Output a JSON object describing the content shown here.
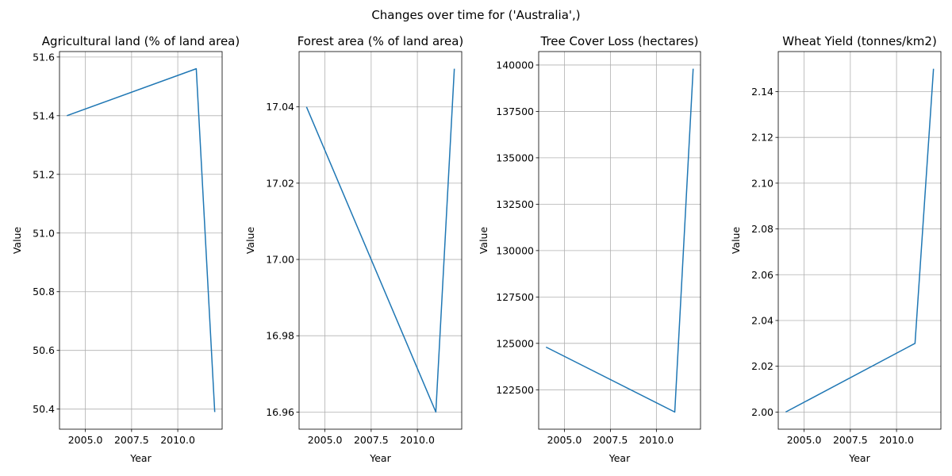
{
  "suptitle": "Changes over time for ('Australia',)",
  "chart_data": [
    {
      "type": "line",
      "title": "Agricultural land (% of land area)",
      "xlabel": "Year",
      "ylabel": "Value",
      "x": [
        2004,
        2011,
        2012
      ],
      "y": [
        51.4,
        51.56,
        50.39
      ],
      "xlim": [
        2003.6,
        2012.4
      ],
      "ylim": [
        50.3315,
        51.6185
      ],
      "xticks": [
        2005.0,
        2007.5,
        2010.0
      ],
      "xtick_labels": [
        "2005.0",
        "2007.5",
        "2010.0"
      ],
      "yticks": [
        50.4,
        50.6,
        50.8,
        51.0,
        51.2,
        51.4,
        51.6
      ],
      "ytick_labels": [
        "50.4",
        "50.6",
        "50.8",
        "51.0",
        "51.2",
        "51.4",
        "51.6"
      ],
      "grid": true,
      "color": "#1f77b4"
    },
    {
      "type": "line",
      "title": "Forest area (% of land area)",
      "xlabel": "Year",
      "ylabel": "Value",
      "x": [
        2004,
        2011,
        2012
      ],
      "y": [
        17.04,
        16.96,
        17.05
      ],
      "xlim": [
        2003.6,
        2012.4
      ],
      "ylim": [
        16.9555,
        17.0545
      ],
      "xticks": [
        2005.0,
        2007.5,
        2010.0
      ],
      "xtick_labels": [
        "2005.0",
        "2007.5",
        "2010.0"
      ],
      "yticks": [
        16.96,
        16.98,
        17.0,
        17.02,
        17.04
      ],
      "ytick_labels": [
        "16.96",
        "16.98",
        "17.00",
        "17.02",
        "17.04"
      ],
      "grid": true,
      "color": "#1f77b4"
    },
    {
      "type": "line",
      "title": "Tree Cover Loss (hectares)",
      "xlabel": "Year",
      "ylabel": "Value",
      "x": [
        2004,
        2011,
        2012
      ],
      "y": [
        124800,
        121300,
        139800
      ],
      "xlim": [
        2003.6,
        2012.4
      ],
      "ylim": [
        120375,
        140725
      ],
      "xticks": [
        2005.0,
        2007.5,
        2010.0
      ],
      "xtick_labels": [
        "2005.0",
        "2007.5",
        "2010.0"
      ],
      "yticks": [
        122500,
        125000,
        127500,
        130000,
        132500,
        135000,
        137500,
        140000
      ],
      "ytick_labels": [
        "122500",
        "125000",
        "127500",
        "130000",
        "132500",
        "135000",
        "137500",
        "140000"
      ],
      "grid": true,
      "color": "#1f77b4"
    },
    {
      "type": "line",
      "title": "Wheat Yield (tonnes/km2)",
      "xlabel": "Year",
      "ylabel": "Value",
      "x": [
        2004,
        2011,
        2012
      ],
      "y": [
        2.0,
        2.03,
        2.15
      ],
      "xlim": [
        2003.6,
        2012.4
      ],
      "ylim": [
        1.9925,
        2.1575
      ],
      "xticks": [
        2005.0,
        2007.5,
        2010.0
      ],
      "xtick_labels": [
        "2005.0",
        "2007.5",
        "2010.0"
      ],
      "yticks": [
        2.0,
        2.02,
        2.04,
        2.06,
        2.08,
        2.1,
        2.12,
        2.14
      ],
      "ytick_labels": [
        "2.00",
        "2.02",
        "2.04",
        "2.06",
        "2.08",
        "2.10",
        "2.12",
        "2.14"
      ],
      "grid": true,
      "color": "#1f77b4"
    }
  ]
}
